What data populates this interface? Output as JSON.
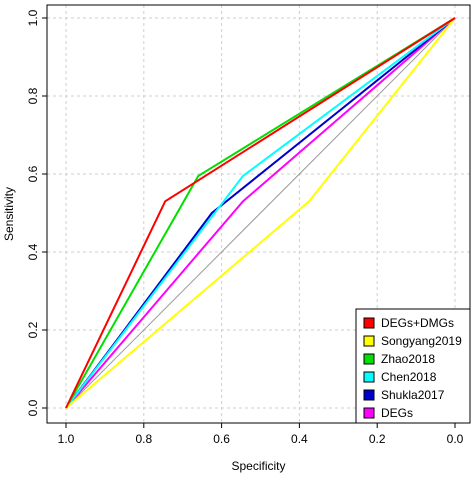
{
  "chart_data": {
    "type": "line",
    "xlabel": "Specificity",
    "ylabel": "Sensitivity",
    "xlim": [
      1.0,
      0.0
    ],
    "ylim": [
      0.0,
      1.0
    ],
    "x_reversed": true,
    "grid": true,
    "legend_position": "bottom-right",
    "x_ticks": [
      {
        "value": 1.0,
        "label": "1.0"
      },
      {
        "value": 0.8,
        "label": "0.8"
      },
      {
        "value": 0.6,
        "label": "0.6"
      },
      {
        "value": 0.4,
        "label": "0.4"
      },
      {
        "value": 0.2,
        "label": "0.2"
      },
      {
        "value": 0.0,
        "label": "0.0"
      }
    ],
    "y_ticks": [
      {
        "value": 0.0,
        "label": "0.0"
      },
      {
        "value": 0.2,
        "label": "0.2"
      },
      {
        "value": 0.4,
        "label": "0.4"
      },
      {
        "value": 0.6,
        "label": "0.6"
      },
      {
        "value": 0.8,
        "label": "0.8"
      },
      {
        "value": 1.0,
        "label": "1.0"
      }
    ],
    "reference_line": {
      "x": [
        1.0,
        0.0
      ],
      "y": [
        0.0,
        1.0
      ],
      "color": "#999999"
    },
    "series": [
      {
        "name": "DEGs+DMGs",
        "color": "#ff0000",
        "x": [
          1.0,
          0.745,
          0.0
        ],
        "y": [
          0.0,
          0.53,
          1.0
        ]
      },
      {
        "name": "Songyang2019",
        "color": "#ffff00",
        "x": [
          1.0,
          0.375,
          0.0
        ],
        "y": [
          0.0,
          0.53,
          1.0
        ]
      },
      {
        "name": "Zhao2018",
        "color": "#00e000",
        "x": [
          1.0,
          0.66,
          0.0
        ],
        "y": [
          0.0,
          0.595,
          1.0
        ]
      },
      {
        "name": "Chen2018",
        "color": "#00ffff",
        "x": [
          1.0,
          0.545,
          0.0
        ],
        "y": [
          0.0,
          0.595,
          1.0
        ]
      },
      {
        "name": "Shukla2017",
        "color": "#0000cc",
        "x": [
          1.0,
          0.625,
          0.0
        ],
        "y": [
          0.0,
          0.5,
          1.0
        ]
      },
      {
        "name": "DEGs",
        "color": "#ff00ff",
        "x": [
          1.0,
          0.545,
          0.0
        ],
        "y": [
          0.0,
          0.53,
          1.0
        ]
      }
    ]
  }
}
